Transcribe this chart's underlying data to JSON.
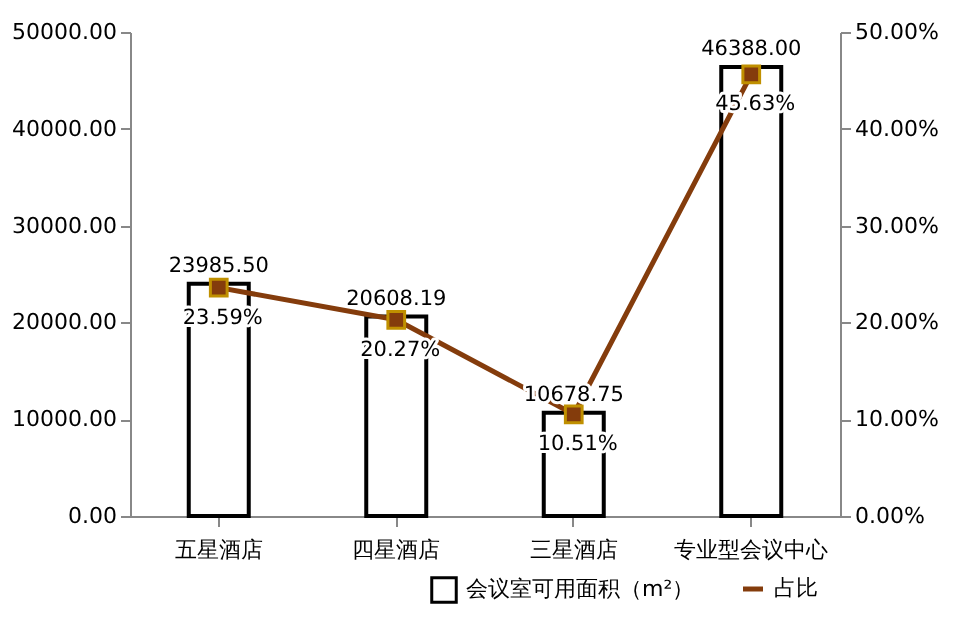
{
  "chart_data": {
    "type": "bar",
    "categories": [
      "五星酒店",
      "四星酒店",
      "三星酒店",
      "专业型会议中心"
    ],
    "series": [
      {
        "name": "会议室可用面积（m²）",
        "color": "#ffffff",
        "values": [
          23985.5,
          20608.19,
          10678.75,
          46388.0
        ],
        "value_labels": [
          "23985.50",
          "20608.19",
          "10678.75",
          "46388.00"
        ]
      },
      {
        "name": "占比",
        "type": "line",
        "axis": "y2",
        "color": "#843c0c",
        "values": [
          23.59,
          20.27,
          10.51,
          45.63
        ],
        "value_labels": [
          "23.59%",
          "20.27%",
          "10.51%",
          "45.63%"
        ]
      }
    ],
    "ylim": [
      0,
      50000
    ],
    "yticks": [
      {
        "value": 0,
        "label": "0.00"
      },
      {
        "value": 10000,
        "label": "10000.00"
      },
      {
        "value": 20000,
        "label": "20000.00"
      },
      {
        "value": 30000,
        "label": "30000.00"
      },
      {
        "value": 40000,
        "label": "40000.00"
      },
      {
        "value": 50000,
        "label": "50000.00"
      }
    ],
    "y2lim": [
      0,
      50
    ],
    "y2ticks": [
      {
        "value": 0,
        "label": "0.00%"
      },
      {
        "value": 10,
        "label": "10.00%"
      },
      {
        "value": 20,
        "label": "20.00%"
      },
      {
        "value": 30,
        "label": "30.00%"
      },
      {
        "value": 40,
        "label": "40.00%"
      },
      {
        "value": 50,
        "label": "50.00%"
      }
    ],
    "legend": "bottom right",
    "marker": "square",
    "grid": false
  }
}
